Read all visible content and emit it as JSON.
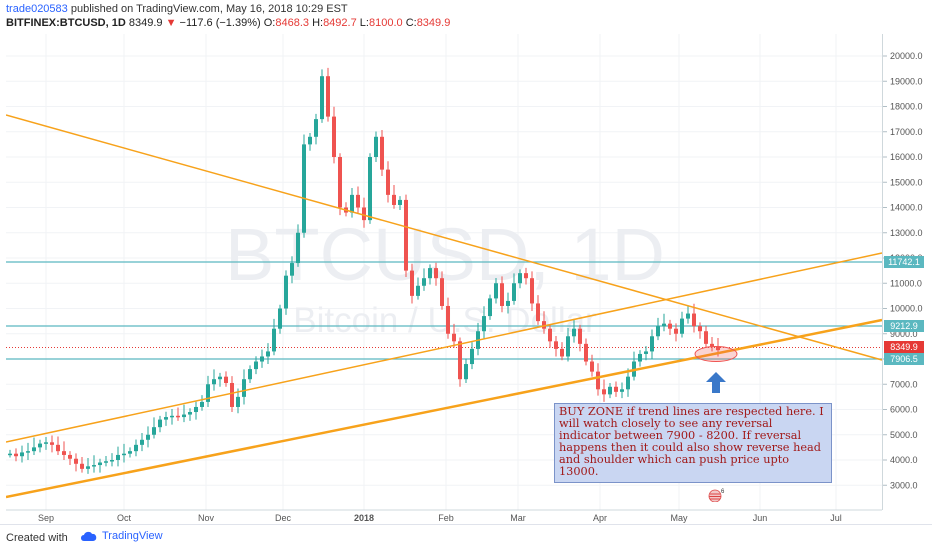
{
  "header": {
    "user": "trade020583",
    "published_text": "published on TradingView.com, May 16, 2018 10:29 EST",
    "symbol": "BITFINEX:BTCUSD, 1D",
    "last_price": "8349.9",
    "change": "−117.6 (−1.39%)",
    "open_label": "O:",
    "open": "8468.3",
    "high_label": "H:",
    "high": "8492.7",
    "low_label": "L:",
    "low": "8100.0",
    "close_label": "C:",
    "close": "8349.9"
  },
  "watermark": {
    "symbol": "BTCUSD, 1D",
    "name": "Bitcoin / U.S. Dollar"
  },
  "price_axis": {
    "ticks": [
      "20000.0",
      "19000.0",
      "18000.0",
      "17000.0",
      "16000.0",
      "15000.0",
      "14000.0",
      "13000.0",
      "12000.0",
      "11000.0",
      "10000.0",
      "9000.0",
      "8000.0",
      "7000.0",
      "6000.0",
      "5000.0",
      "4000.0",
      "3000.0"
    ],
    "labels": [
      {
        "text": "11742.1",
        "color": "#5bb8c0"
      },
      {
        "text": "9212.9",
        "color": "#5bb8c0"
      },
      {
        "text": "8349.9",
        "color": "#e53935"
      },
      {
        "text": "7906.5",
        "color": "#5bb8c0"
      }
    ]
  },
  "time_axis": {
    "labels": [
      "Sep",
      "Oct",
      "Nov",
      "Dec",
      "2018",
      "Feb",
      "Mar",
      "Apr",
      "May",
      "Jun",
      "Jul"
    ]
  },
  "annotation": {
    "text": "BUY ZONE if trend lines are respected here. I will watch closely to see any reversal indicator between 7900 - 8200. If reversal happens then it could also show reverse head and shoulder which can push price upto 13000."
  },
  "footer": {
    "created_with": "Created with",
    "brand": "TradingView"
  },
  "colors": {
    "up": "#26a69a",
    "down": "#ef5350",
    "trendline": "#f7a21b",
    "horizontal": "#5bb8c0",
    "accent": "#2962ff"
  }
}
